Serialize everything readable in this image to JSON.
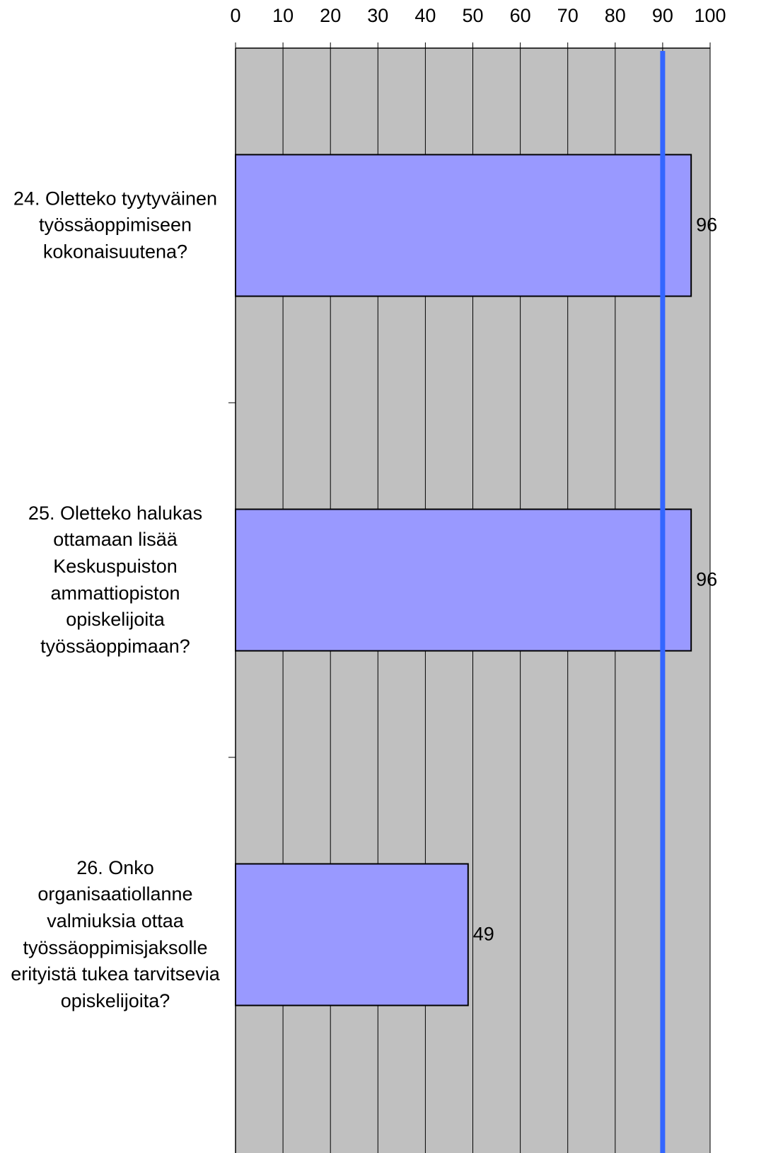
{
  "chart_data": {
    "type": "barh",
    "categories": [
      "24. Oletteko tyytyväinen työssäoppimiseen kokonaisuutena?",
      "25. Oletteko halukas ottamaan lisää Keskuspuiston ammattiopiston opiskelijoita työssäoppimaan?",
      "26. Onko organisaatiollanne valmiuksia ottaa työssäoppimisjaksolle erityistä tukea tarvitsevia opiskelijoita?"
    ],
    "values": [
      96,
      96,
      49
    ],
    "color": "#9999ff",
    "xlim": [
      0,
      100
    ],
    "xticks": [
      0,
      10,
      20,
      30,
      40,
      50,
      60,
      70,
      80,
      90,
      100
    ],
    "grid": true,
    "reference_line": {
      "value": 90,
      "color": "#3366ff"
    }
  }
}
